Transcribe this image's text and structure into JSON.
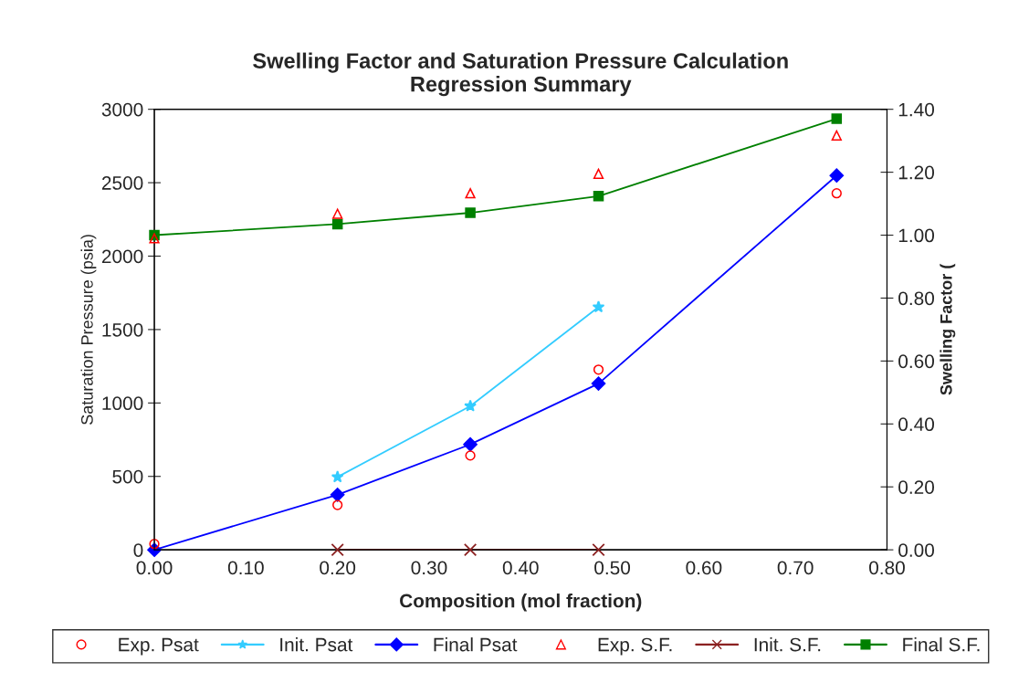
{
  "chart_data": {
    "type": "line",
    "title": "Swelling Factor and Saturation Pressure Calculation\nRegression Summary",
    "xlabel": "Composition (mol fraction)",
    "ylabel": "Saturation Pressure (psia)",
    "y2label": "Swelling Factor (",
    "xlim": [
      0,
      0.8
    ],
    "xticks": [
      {
        "value": 0,
        "label": "0.00"
      },
      {
        "value": 0.1,
        "label": "0.10"
      },
      {
        "value": 0.2,
        "label": "0.20"
      },
      {
        "value": 0.3,
        "label": "0.30"
      },
      {
        "value": 0.4,
        "label": "0.40"
      },
      {
        "value": 0.5,
        "label": "0.50"
      },
      {
        "value": 0.6,
        "label": "0.60"
      },
      {
        "value": 0.7,
        "label": "0.70"
      },
      {
        "value": 0.8,
        "label": "0.80"
      }
    ],
    "ylim": [
      0,
      3000
    ],
    "yticks": [
      0,
      500,
      1000,
      1500,
      2000,
      2500,
      3000
    ],
    "y2lim": [
      0,
      1.4
    ],
    "y2ticks": [
      {
        "value": 0,
        "label": "0.00"
      },
      {
        "value": 0.2,
        "label": "0.20"
      },
      {
        "value": 0.4,
        "label": "0.40"
      },
      {
        "value": 0.6,
        "label": "0.60"
      },
      {
        "value": 0.8,
        "label": "0.80"
      },
      {
        "value": 1.0,
        "label": "1.00"
      },
      {
        "value": 1.2,
        "label": "1.20"
      },
      {
        "value": 1.4,
        "label": "1.40"
      }
    ],
    "grid": false,
    "legend": "bottom",
    "series": [
      {
        "name": "Exp. Psat",
        "type": "scatter",
        "marker": "circle",
        "color": "#ff0000",
        "x": [
          0,
          0.2,
          0.345,
          0.485,
          0.745
        ],
        "values": [
          40,
          305,
          642,
          1227,
          2428
        ]
      },
      {
        "name": "Init. Psat",
        "marker": "star",
        "color": "#33ccff",
        "x": [
          0.2,
          0.345,
          0.485
        ],
        "values": [
          496,
          979,
          1653
        ]
      },
      {
        "name": "Final Psat",
        "marker": "diamond",
        "color": "#0000ff",
        "x": [
          0,
          0.2,
          0.345,
          0.485,
          0.745
        ],
        "values": [
          0,
          375,
          718,
          1132,
          2549
        ]
      },
      {
        "name": "Exp. S.F.",
        "type": "scatter",
        "marker": "triangle",
        "color": "#ff0000",
        "axis": "y2",
        "x": [
          0,
          0.2,
          0.345,
          0.485,
          0.745
        ],
        "values": [
          0.99,
          1.068,
          1.133,
          1.195,
          1.317
        ]
      },
      {
        "name": "Init. S.F.",
        "marker": "cross",
        "color": "#8b2020",
        "axis": "y2",
        "x": [
          0.2,
          0.345,
          0.485
        ],
        "values": [
          0,
          0,
          0
        ]
      },
      {
        "name": "Final S.F.",
        "marker": "square",
        "color": "#008000",
        "axis": "y2",
        "x": [
          0,
          0.2,
          0.345,
          0.485,
          0.745
        ],
        "values": [
          1.0,
          1.035,
          1.071,
          1.124,
          1.37
        ]
      }
    ]
  }
}
